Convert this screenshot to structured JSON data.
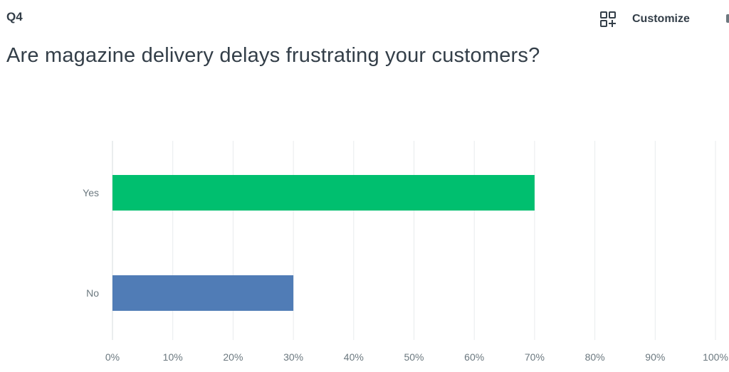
{
  "header": {
    "question_number": "Q4",
    "customize_label": "Customize",
    "customize_icon": "add-widget-icon"
  },
  "question": {
    "text": "Are magazine delivery delays frustrating your customers?"
  },
  "chart_data": {
    "type": "bar",
    "orientation": "horizontal",
    "title": "Are magazine delivery delays frustrating your customers?",
    "xlabel": "",
    "ylabel": "",
    "categories": [
      "Yes",
      "No"
    ],
    "values": [
      70,
      30
    ],
    "colors": [
      "#00bf6f",
      "#507cb6"
    ],
    "xlim": [
      0,
      100
    ],
    "x_ticks": [
      "0%",
      "10%",
      "20%",
      "30%",
      "40%",
      "50%",
      "60%",
      "70%",
      "80%",
      "90%",
      "100%"
    ],
    "grid": true,
    "legend": "none"
  }
}
